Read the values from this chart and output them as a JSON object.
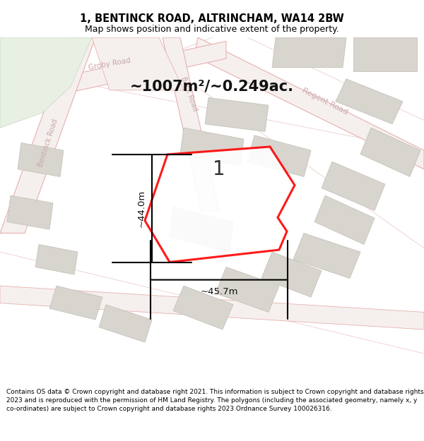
{
  "title": "1, BENTINCK ROAD, ALTRINCHAM, WA14 2BW",
  "subtitle": "Map shows position and indicative extent of the property.",
  "area_text": "~1007m²/~0.249ac.",
  "label_number": "1",
  "dim_vertical": "~44.0m",
  "dim_horizontal": "~45.7m",
  "footer_text": "Contains OS data © Crown copyright and database right 2021. This information is subject to Crown copyright and database rights 2023 and is reproduced with the permission of HM Land Registry. The polygons (including the associated geometry, namely x, y co-ordinates) are subject to Crown copyright and database rights 2023 Ordnance Survey 100026316.",
  "map_bg": "#f0ece4",
  "road_fill": "#f5f0ee",
  "road_edge": "#e8b0b0",
  "building_fill": "#d8d5ce",
  "building_edge": "#c0bcb5",
  "green_fill": "#e8f0e4",
  "green_edge": "#c8d8c0",
  "plot_color": "#ff0000",
  "title_color": "#000000",
  "footer_color": "#000000",
  "dim_color": "#000000",
  "road_label_color": "#c0a8a8",
  "number_label_color": "#333333"
}
